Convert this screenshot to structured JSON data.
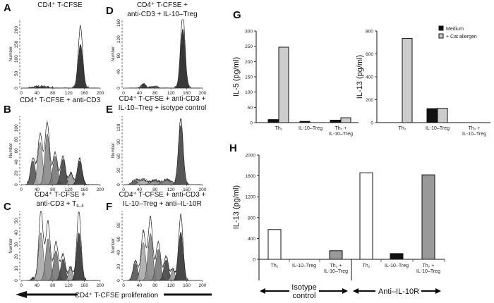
{
  "figure": {
    "proliferation_label": "CD4⁺ T-CFSE proliferation"
  },
  "chart_data": [
    {
      "panel": "A",
      "type": "area",
      "title": [
        "CD4⁺ T-CFSE"
      ],
      "ylabel": "Number",
      "xlim": [
        0,
        200
      ],
      "ylim": [
        0,
        235
      ],
      "xticks": [
        "0",
        "40",
        "80",
        "120",
        "160",
        "200"
      ],
      "yticks": [
        "0",
        "50",
        "100",
        "150",
        "200"
      ],
      "peaks": [
        {
          "center": 50,
          "height": 5,
          "sd": 14
        },
        {
          "center": 150,
          "height": 150,
          "sd": 6
        }
      ],
      "outline_max": 215
    },
    {
      "panel": "D",
      "type": "area",
      "title": [
        "CD4⁺ T-CFSE +",
        "anti-CD3 + IL-10–Treg"
      ],
      "ylabel": "Number",
      "xlim": [
        0,
        200
      ],
      "ylim": [
        0,
        168
      ],
      "xticks": [
        "0",
        "40",
        "80",
        "120",
        "160",
        "200"
      ],
      "yticks": [
        "0",
        "40",
        "80",
        "120",
        "160"
      ],
      "peaks": [
        {
          "center": 50,
          "height": 10,
          "sd": 5
        },
        {
          "center": 75,
          "height": 4,
          "sd": 8
        },
        {
          "center": 150,
          "height": 145,
          "sd": 6
        }
      ],
      "outline_max": 185
    },
    {
      "panel": "B",
      "type": "area",
      "title": [
        "CD4⁺ T-CFSE + anti-CD3"
      ],
      "ylabel": "Number",
      "xlim": [
        0,
        200
      ],
      "ylim": [
        0,
        121
      ],
      "xticks": [
        "0",
        "40",
        "80",
        "120",
        "160",
        "200"
      ],
      "yticks": [
        "0",
        "20",
        "40",
        "60",
        "80",
        "100"
      ],
      "peaks": [
        {
          "center": 30,
          "height": 42,
          "sd": 6
        },
        {
          "center": 48,
          "height": 75,
          "sd": 6
        },
        {
          "center": 66,
          "height": 90,
          "sd": 6
        },
        {
          "center": 86,
          "height": 50,
          "sd": 6
        },
        {
          "center": 106,
          "height": 45,
          "sd": 6
        },
        {
          "center": 126,
          "height": 20,
          "sd": 5
        },
        {
          "center": 148,
          "height": 42,
          "sd": 6
        }
      ],
      "outline_max": 110
    },
    {
      "panel": "E",
      "type": "area",
      "title": [
        "CD4⁺ T-CFSE + anti-CD3 +",
        "IL-10–Treg + isotype control"
      ],
      "ylabel": "Number",
      "xlim": [
        0,
        200
      ],
      "ylim": [
        0,
        144
      ],
      "xticks": [
        "0",
        "40",
        "80",
        "120",
        "160",
        "200"
      ],
      "yticks": [
        "0",
        "30",
        "60",
        "90",
        "120"
      ],
      "peaks": [
        {
          "center": 30,
          "height": 8,
          "sd": 8
        },
        {
          "center": 50,
          "height": 10,
          "sd": 10
        },
        {
          "center": 80,
          "height": 9,
          "sd": 10
        },
        {
          "center": 110,
          "height": 10,
          "sd": 10
        },
        {
          "center": 145,
          "height": 125,
          "sd": 6
        }
      ],
      "outline_max": 138
    },
    {
      "panel": "C",
      "type": "area",
      "title": [
        "CD4⁺ T-CFSE +",
        "anti-CD3 + T"
      ],
      "title_subscript": "IL-4",
      "ylabel": "Number",
      "xlim": [
        0,
        200
      ],
      "ylim": [
        0,
        58
      ],
      "xticks": [
        "0",
        "40",
        "80",
        "120",
        "160",
        "200"
      ],
      "yticks": [
        "0",
        "10",
        "20",
        "30",
        "40",
        "50"
      ],
      "peaks": [
        {
          "center": 30,
          "height": 2,
          "sd": 4
        },
        {
          "center": 50,
          "height": 40,
          "sd": 6
        },
        {
          "center": 68,
          "height": 35,
          "sd": 6
        },
        {
          "center": 88,
          "height": 25,
          "sd": 6
        },
        {
          "center": 106,
          "height": 18,
          "sd": 6
        },
        {
          "center": 125,
          "height": 10,
          "sd": 5
        },
        {
          "center": 146,
          "height": 40,
          "sd": 6
        }
      ],
      "outline_max": 58
    },
    {
      "panel": "F",
      "type": "area",
      "title": [
        "CD4⁺ T-CFSE + anti-CD3 +",
        "IL-10–Treg + anti–IL-10R"
      ],
      "ylabel": "Number",
      "xlim": [
        0,
        200
      ],
      "ylim": [
        0,
        100
      ],
      "xticks": [
        "0",
        "40",
        "80",
        "120",
        "160",
        "200"
      ],
      "yticks": [
        "0",
        "20",
        "40",
        "60",
        "80"
      ],
      "peaks": [
        {
          "center": 30,
          "height": 25,
          "sd": 6
        },
        {
          "center": 50,
          "height": 55,
          "sd": 6
        },
        {
          "center": 68,
          "height": 68,
          "sd": 6
        },
        {
          "center": 88,
          "height": 45,
          "sd": 6
        },
        {
          "center": 108,
          "height": 30,
          "sd": 6
        },
        {
          "center": 125,
          "height": 15,
          "sd": 5
        },
        {
          "center": 145,
          "height": 70,
          "sd": 6
        }
      ],
      "outline_max": 95
    },
    {
      "panel": "G",
      "type": "bar",
      "ylabel": "IL-5 (pg/ml)",
      "ylim": [
        0,
        300
      ],
      "yticks": [
        "0",
        "50",
        "100",
        "150",
        "200",
        "250",
        "300"
      ],
      "categories": [
        [
          "Th₂"
        ],
        [
          "IL-10–Treg"
        ],
        [
          "Th₂ +",
          "IL-10–Treg"
        ]
      ],
      "series": [
        {
          "name": "Medium",
          "color": "#111111",
          "values": [
            10,
            4,
            8
          ]
        },
        {
          "name": "+ Cat allergen",
          "color": "#cccccc",
          "values": [
            247,
            0,
            16
          ]
        }
      ]
    },
    {
      "panel": "G",
      "type": "bar",
      "ylabel": "IL-13 (pg/ml)",
      "ylim": [
        0,
        800
      ],
      "yticks": [
        "0",
        "200",
        "400",
        "600",
        "800"
      ],
      "categories": [
        [
          "Th₂"
        ],
        [
          "IL-10–Treg"
        ],
        [
          "Th₂ +",
          "IL-10–Treg"
        ]
      ],
      "series": [
        {
          "name": "Medium",
          "color": "#111111",
          "values": [
            0,
            122,
            0
          ]
        },
        {
          "name": "+ Cat allergen",
          "color": "#cccccc",
          "values": [
            735,
            125,
            0
          ]
        }
      ],
      "legend": "top-right"
    },
    {
      "panel": "H",
      "type": "bar",
      "ylabel": "IL-13 (pg/ml)",
      "ylim": [
        0,
        2000
      ],
      "yticks": [
        "0",
        "400",
        "800",
        "1200",
        "1600",
        "2000"
      ],
      "categories": [
        [
          "Th₂"
        ],
        [
          "IL-10–Treg"
        ],
        [
          "Th₂ +",
          "IL-10–Treg"
        ],
        [
          "Th₂"
        ],
        [
          "IL-10–Treg"
        ],
        [
          "Th₂ +",
          "IL-10–Treg"
        ]
      ],
      "values": [
        570,
        0,
        165,
        1660,
        110,
        1620
      ],
      "colors": [
        "#ffffff",
        "#111111",
        "#999999",
        "#ffffff",
        "#111111",
        "#999999"
      ],
      "groups": [
        {
          "label": [
            "Isotype",
            "control"
          ]
        },
        {
          "label": [
            "Anti–IL-10R"
          ]
        }
      ]
    }
  ]
}
